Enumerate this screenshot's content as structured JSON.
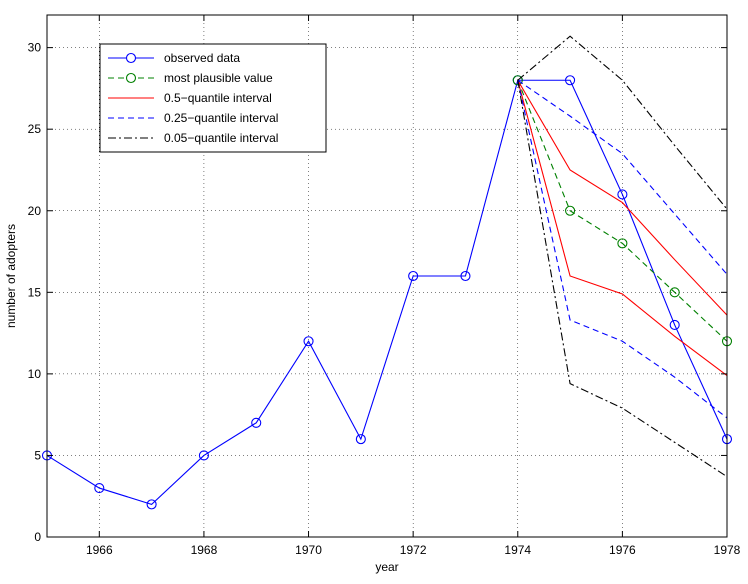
{
  "chart_data": {
    "type": "line",
    "title": "",
    "xlabel": "year",
    "ylabel": "number of adopters",
    "xlim": [
      1965,
      1978
    ],
    "ylim": [
      0,
      32
    ],
    "xticks": [
      1966,
      1968,
      1970,
      1972,
      1974,
      1976,
      1978
    ],
    "yticks": [
      0,
      5,
      10,
      15,
      20,
      25,
      30
    ],
    "grid": true,
    "legend_position": "top-left",
    "series": [
      {
        "name": "observed data",
        "color": "#0000ff",
        "dash": "solid",
        "marker": "circle",
        "x": [
          1965,
          1966,
          1967,
          1968,
          1969,
          1970,
          1971,
          1972,
          1973,
          1974,
          1975,
          1976,
          1977,
          1978
        ],
        "y": [
          5,
          3,
          2,
          5,
          7,
          12,
          6,
          16,
          16,
          28,
          28,
          21,
          13,
          6
        ]
      },
      {
        "name": "most plausible value",
        "color": "#008000",
        "dash": "dashed",
        "marker": "circle",
        "x": [
          1974,
          1975,
          1976,
          1977,
          1978
        ],
        "y": [
          28,
          20,
          18,
          15,
          12
        ]
      },
      {
        "name": "0.5−quantile interval",
        "color": "#ff0000",
        "dash": "solid",
        "marker": "none",
        "x": [
          1974,
          1975,
          1976,
          1977,
          1978
        ],
        "y": [
          28,
          22.5,
          20.5,
          17,
          13.6
        ],
        "y2": [
          28,
          16,
          14.9,
          12.3,
          9.9
        ]
      },
      {
        "name": "0.25−quantile interval",
        "color": "#0000ff",
        "dash": "dashed",
        "marker": "none",
        "x": [
          1974,
          1975,
          1976,
          1977,
          1978
        ],
        "y": [
          28,
          25.8,
          23.5,
          19.8,
          16.1
        ],
        "y2": [
          28,
          13.3,
          12,
          9.8,
          7.3
        ]
      },
      {
        "name": "0.05−quantile interval",
        "color": "#000000",
        "dash": "dashdot",
        "marker": "none",
        "x": [
          1974,
          1975,
          1976,
          1977,
          1978
        ],
        "y": [
          28,
          30.7,
          28,
          24,
          20.1
        ],
        "y2": [
          28,
          9.4,
          7.9,
          5.8,
          3.7
        ]
      }
    ]
  }
}
